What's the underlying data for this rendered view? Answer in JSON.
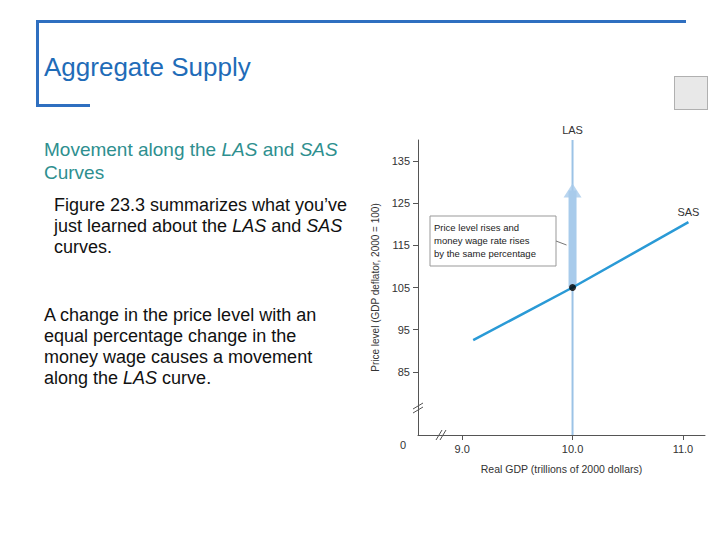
{
  "slide": {
    "title": "Aggregate Supply",
    "heading": "Movement along the LAS and SAS Curves",
    "paragraphs": [
      "Figure 23.3 summarizes what you’ve just learned about the LAS and SAS curves.",
      "A change in the price level with an equal percentage change in the money wage causes a movement along the LAS curve."
    ]
  },
  "chart_data": {
    "type": "line",
    "x_label": "Real GDP (trillions of 2000 dollars)",
    "y_label": "Price level (GDP deflator, 2000 = 100)",
    "origin_label": "0",
    "xlim": [
      8.6,
      11.2
    ],
    "xticks": [
      {
        "value": 9,
        "label": "9.0"
      },
      {
        "value": 10,
        "label": "10.0"
      },
      {
        "value": 11,
        "label": "11.0"
      }
    ],
    "ylim": [
      70,
      140
    ],
    "yticks": [
      85,
      95,
      105,
      115,
      125,
      135
    ],
    "series": [
      {
        "name": "LAS",
        "color": "#9cc3e6",
        "x": [
          10,
          10
        ],
        "values": [
          70,
          140
        ]
      },
      {
        "name": "SAS",
        "color": "#2a9ad6",
        "x": [
          9.1,
          10,
          11.05
        ],
        "values": [
          92.5,
          105,
          120.5
        ]
      }
    ],
    "point": {
      "x": 10,
      "y": 105,
      "color": "#000000"
    },
    "arrow": {
      "x": 10,
      "from": 105,
      "to": 128,
      "color": "#a8cbeb"
    },
    "annotation": "Price level rises and\nmoney wage rate rises\nby the same percentage",
    "grid": false
  }
}
